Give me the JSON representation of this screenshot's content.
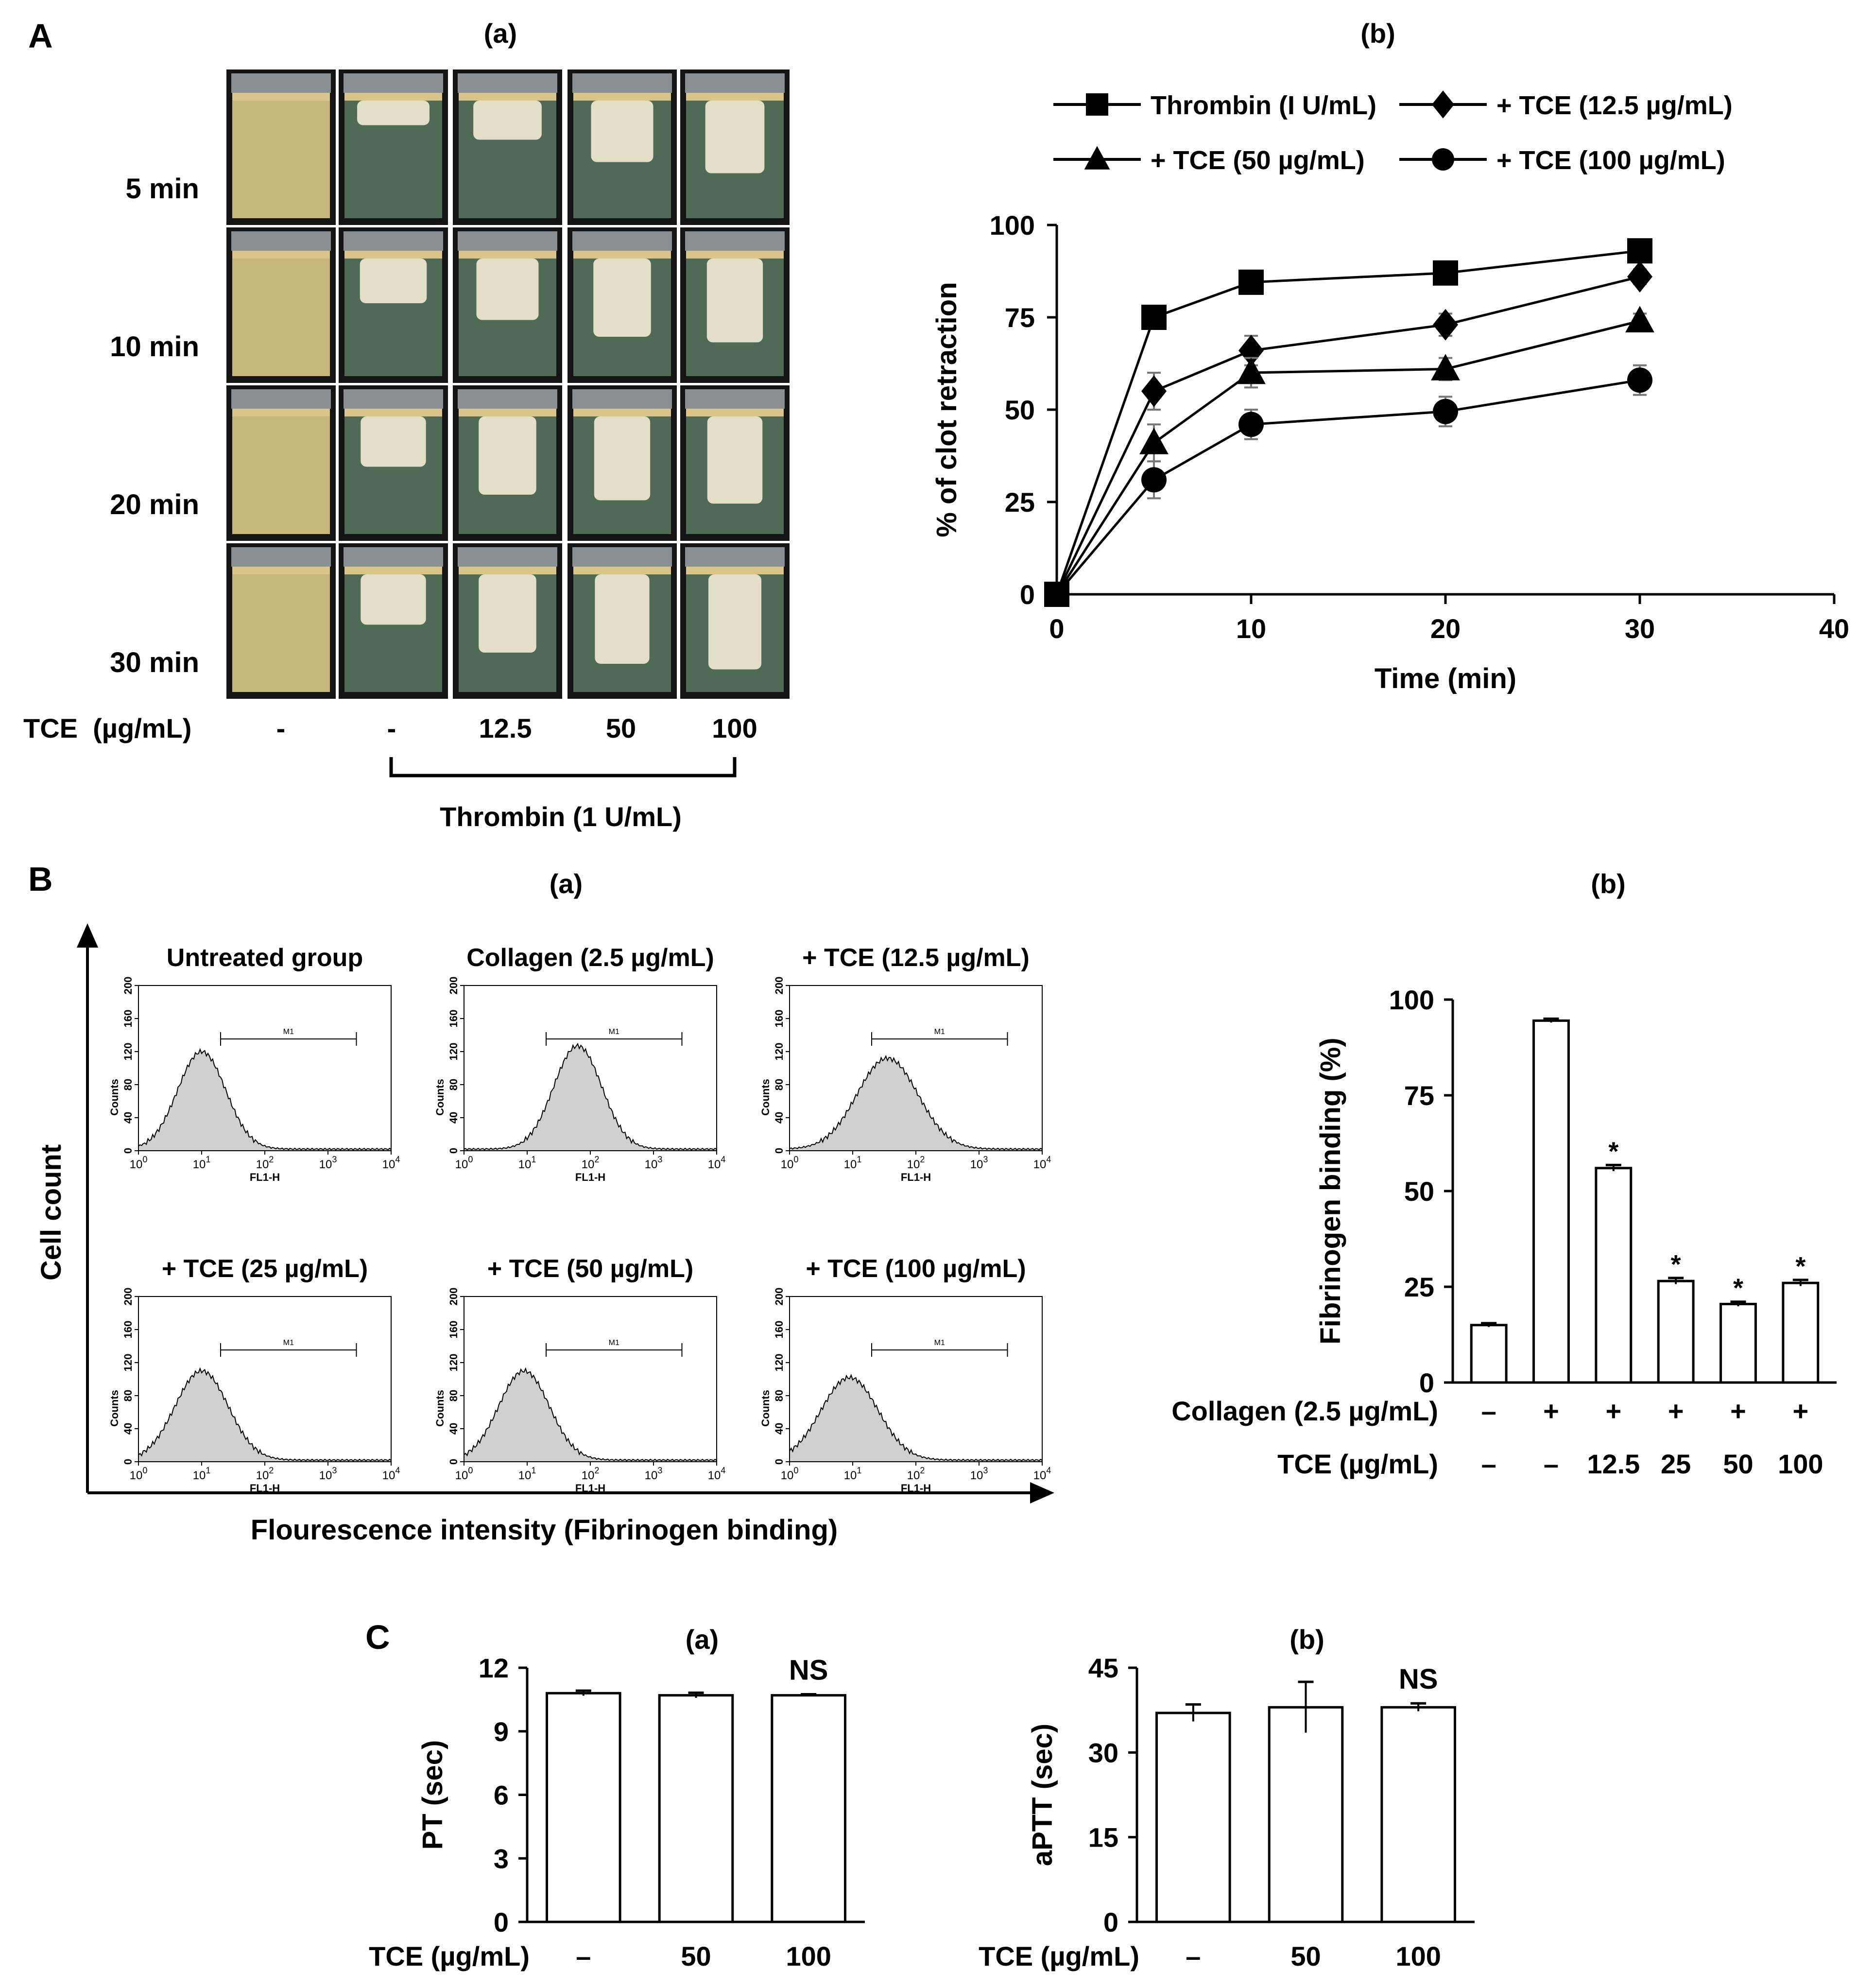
{
  "panelA": {
    "letter": "A",
    "a": {
      "title": "(a)",
      "rows": [
        "5 min",
        "10 min",
        "20 min",
        "30 min"
      ],
      "x_caption": "TCE  (µg/mL)",
      "doses": [
        "-",
        "-",
        "12.5",
        "50",
        "100"
      ],
      "bracket_label": "Thrombin (1 U/mL)",
      "clot_fractions": [
        [
          0,
          0.22,
          0.35,
          0.55,
          0.65
        ],
        [
          0,
          0.4,
          0.55,
          0.7,
          0.75
        ],
        [
          0,
          0.45,
          0.7,
          0.75,
          0.78
        ],
        [
          0,
          0.45,
          0.7,
          0.8,
          0.85
        ]
      ]
    },
    "b": {
      "title": "(b)"
    }
  },
  "panelB": {
    "letter": "B",
    "a": {
      "title": "(a)",
      "y_axis_label": "Cell count",
      "x_axis_label": "Flourescence intensity (Fibrinogen binding)",
      "hist_ylabel": "Counts",
      "hist_xlabel": "FL1-H",
      "gate_label": "M1",
      "y_ticks": [
        "0",
        "40",
        "80",
        "120",
        "160",
        "200"
      ],
      "x_ticks": [
        "0",
        "1",
        "2",
        "3",
        "4"
      ],
      "histograms": [
        {
          "title": "Untreated group",
          "peak_decade": 1.0,
          "peak_count": 118,
          "width": 0.38
        },
        {
          "title": "Collagen (2.5 µg/mL)",
          "peak_decade": 1.8,
          "peak_count": 125,
          "width": 0.38
        },
        {
          "title": "+ TCE (12.5 µg/mL)",
          "peak_decade": 1.55,
          "peak_count": 110,
          "width": 0.48
        },
        {
          "title": "+ TCE (25 µg/mL)",
          "peak_decade": 1.0,
          "peak_count": 108,
          "width": 0.42
        },
        {
          "title": "+ TCE (50 µg/mL)",
          "peak_decade": 0.95,
          "peak_count": 108,
          "width": 0.4
        },
        {
          "title": "+ TCE (100 µg/mL)",
          "peak_decade": 0.95,
          "peak_count": 100,
          "width": 0.45
        }
      ]
    },
    "b": {
      "title": "(b)"
    }
  },
  "panelC": {
    "letter": "C"
  },
  "chart_data": [
    {
      "id": "A-b",
      "type": "line",
      "title": "(b)",
      "xlabel": "Time (min)",
      "ylabel": "% of clot retraction",
      "xlim": [
        0,
        40
      ],
      "ylim": [
        0,
        100
      ],
      "xticks": [
        0,
        10,
        20,
        30,
        40
      ],
      "yticks": [
        0,
        25,
        50,
        75,
        100
      ],
      "x": [
        0,
        5,
        10,
        20,
        30
      ],
      "series": [
        {
          "name": "Thrombin (I U/mL)",
          "marker": "square",
          "values": [
            0,
            75,
            84.5,
            87,
            93
          ],
          "errors": [
            0,
            1.5,
            3,
            2,
            2
          ]
        },
        {
          "name": "+ TCE (12.5 µg/mL)",
          "marker": "diamond",
          "values": [
            0,
            55,
            66,
            73,
            86
          ],
          "errors": [
            0,
            5,
            4,
            3,
            2
          ]
        },
        {
          "name": "+ TCE (50 µg/mL)",
          "marker": "triangle",
          "values": [
            0,
            41,
            60,
            61,
            74
          ],
          "errors": [
            0,
            5,
            4,
            3,
            2
          ]
        },
        {
          "name": "+ TCE (100 µg/mL)",
          "marker": "circle",
          "values": [
            0,
            31,
            46,
            49.5,
            58
          ],
          "errors": [
            0,
            5,
            4,
            4,
            4
          ]
        }
      ]
    },
    {
      "id": "B-b",
      "type": "bar",
      "title": "(b)",
      "ylabel": "Fibrinogen binding (%)",
      "ylim": [
        0,
        100
      ],
      "yticks": [
        0,
        25,
        50,
        75,
        100
      ],
      "values": [
        15,
        94.5,
        56,
        26.5,
        20.5,
        26
      ],
      "errors": [
        0.5,
        0.5,
        0.8,
        0.8,
        0.6,
        0.8
      ],
      "significance": [
        "",
        "",
        "*",
        "*",
        "*",
        "*"
      ],
      "row_labels": [
        "Collagen (2.5 µg/mL)",
        "TCE (µg/mL)"
      ],
      "rows": [
        [
          "–",
          "+",
          "+",
          "+",
          "+",
          "+"
        ],
        [
          "–",
          "–",
          "12.5",
          "25",
          "50",
          "100"
        ]
      ]
    },
    {
      "id": "C-a",
      "type": "bar",
      "title": "(a)",
      "ylabel": "PT (sec)",
      "ylim": [
        0,
        12
      ],
      "yticks": [
        0,
        3,
        6,
        9,
        12
      ],
      "values": [
        10.8,
        10.7,
        10.7
      ],
      "errors": [
        0.12,
        0.12,
        0.05
      ],
      "significance": [
        "",
        "",
        "NS"
      ],
      "row_labels": [
        "TCE (µg/mL)"
      ],
      "rows": [
        [
          "–",
          "50",
          "100"
        ]
      ]
    },
    {
      "id": "C-b",
      "type": "bar",
      "title": "(b)",
      "ylabel": "aPTT (sec)",
      "ylim": [
        0,
        45
      ],
      "yticks": [
        0,
        15,
        30,
        45
      ],
      "values": [
        37,
        38,
        38
      ],
      "errors": [
        1.5,
        4.5,
        0.7
      ],
      "significance": [
        "",
        "",
        "NS"
      ],
      "row_labels": [
        "TCE (µg/mL)"
      ],
      "rows": [
        [
          "–",
          "50",
          "100"
        ]
      ]
    }
  ]
}
